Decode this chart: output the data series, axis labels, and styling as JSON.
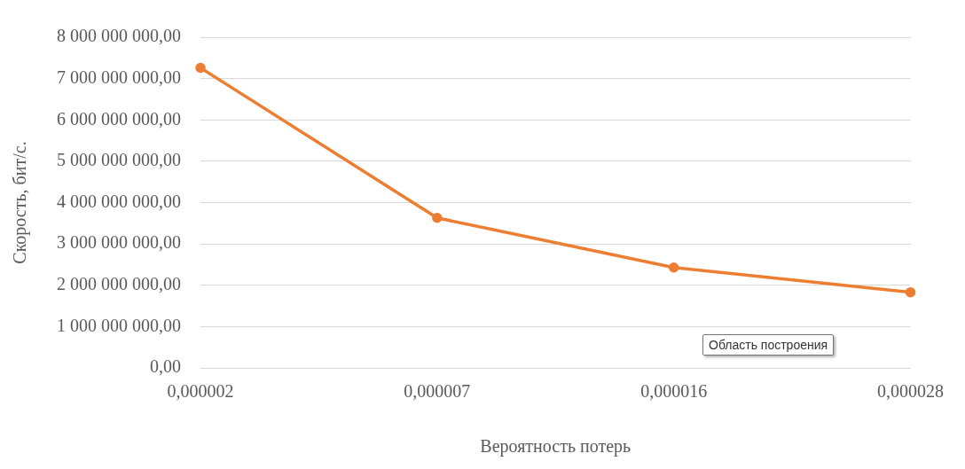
{
  "chart_data": {
    "type": "line",
    "xlabel": "Вероятность потерь",
    "ylabel": "Скорость, бит/с.",
    "categories": [
      "0,000002",
      "0,000007",
      "0,000016",
      "0,000028"
    ],
    "series": [
      {
        "color": "#ed7d31",
        "values": [
          7260000000,
          3630000000,
          2430000000,
          1830000000
        ]
      }
    ],
    "ylim": [
      0,
      8000000000
    ],
    "yticks": [
      {
        "value": 0,
        "label": "0,00"
      },
      {
        "value": 1000000000,
        "label": "1 000 000 000,00"
      },
      {
        "value": 2000000000,
        "label": "2 000 000 000,00"
      },
      {
        "value": 3000000000,
        "label": "3 000 000 000,00"
      },
      {
        "value": 4000000000,
        "label": "4 000 000 000,00"
      },
      {
        "value": 5000000000,
        "label": "5 000 000 000,00"
      },
      {
        "value": 6000000000,
        "label": "6 000 000 000,00"
      },
      {
        "value": 7000000000,
        "label": "7 000 000 000,00"
      },
      {
        "value": 8000000000,
        "label": "8 000 000 000,00"
      }
    ],
    "grid": "y",
    "legend": false,
    "marker": "circle",
    "line_style": "solid",
    "annotations": [
      "Область построения"
    ]
  }
}
